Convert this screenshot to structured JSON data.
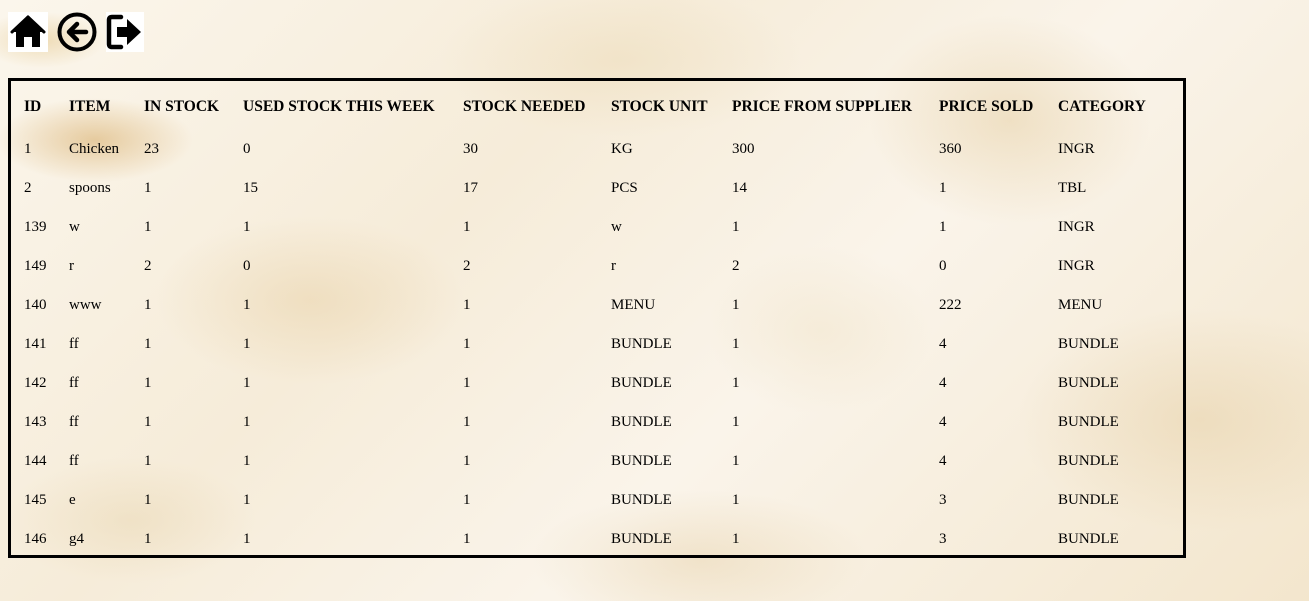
{
  "toolbar": {
    "icons": [
      "home-icon",
      "back-arrow-icon",
      "logout-icon"
    ]
  },
  "table": {
    "columns": [
      "ID",
      "ITEM",
      "IN STOCK",
      "USED STOCK THIS WEEK",
      "STOCK NEEDED",
      "STOCK UNIT",
      "PRICE FROM SUPPLIER",
      "PRICE SOLD",
      "CATEGORY"
    ],
    "rows": [
      [
        "1",
        "Chicken",
        "23",
        "0",
        "30",
        "KG",
        "300",
        "360",
        "INGR"
      ],
      [
        "2",
        "spoons",
        "1",
        "15",
        "17",
        "PCS",
        "14",
        "1",
        "TBL"
      ],
      [
        "139",
        "w",
        "1",
        "1",
        "1",
        "w",
        "1",
        "1",
        "INGR"
      ],
      [
        "149",
        "r",
        "2",
        "0",
        "2",
        "r",
        "2",
        "0",
        "INGR"
      ],
      [
        "140",
        "www",
        "1",
        "1",
        "1",
        "MENU",
        "1",
        "222",
        "MENU"
      ],
      [
        "141",
        "ff",
        "1",
        "1",
        "1",
        "BUNDLE",
        "1",
        "4",
        "BUNDLE"
      ],
      [
        "142",
        "ff",
        "1",
        "1",
        "1",
        "BUNDLE",
        "1",
        "4",
        "BUNDLE"
      ],
      [
        "143",
        "ff",
        "1",
        "1",
        "1",
        "BUNDLE",
        "1",
        "4",
        "BUNDLE"
      ],
      [
        "144",
        "ff",
        "1",
        "1",
        "1",
        "BUNDLE",
        "1",
        "4",
        "BUNDLE"
      ],
      [
        "145",
        "e",
        "1",
        "1",
        "1",
        "BUNDLE",
        "1",
        "3",
        "BUNDLE"
      ],
      [
        "146",
        "g4",
        "1",
        "1",
        "1",
        "BUNDLE",
        "1",
        "3",
        "BUNDLE"
      ]
    ]
  }
}
